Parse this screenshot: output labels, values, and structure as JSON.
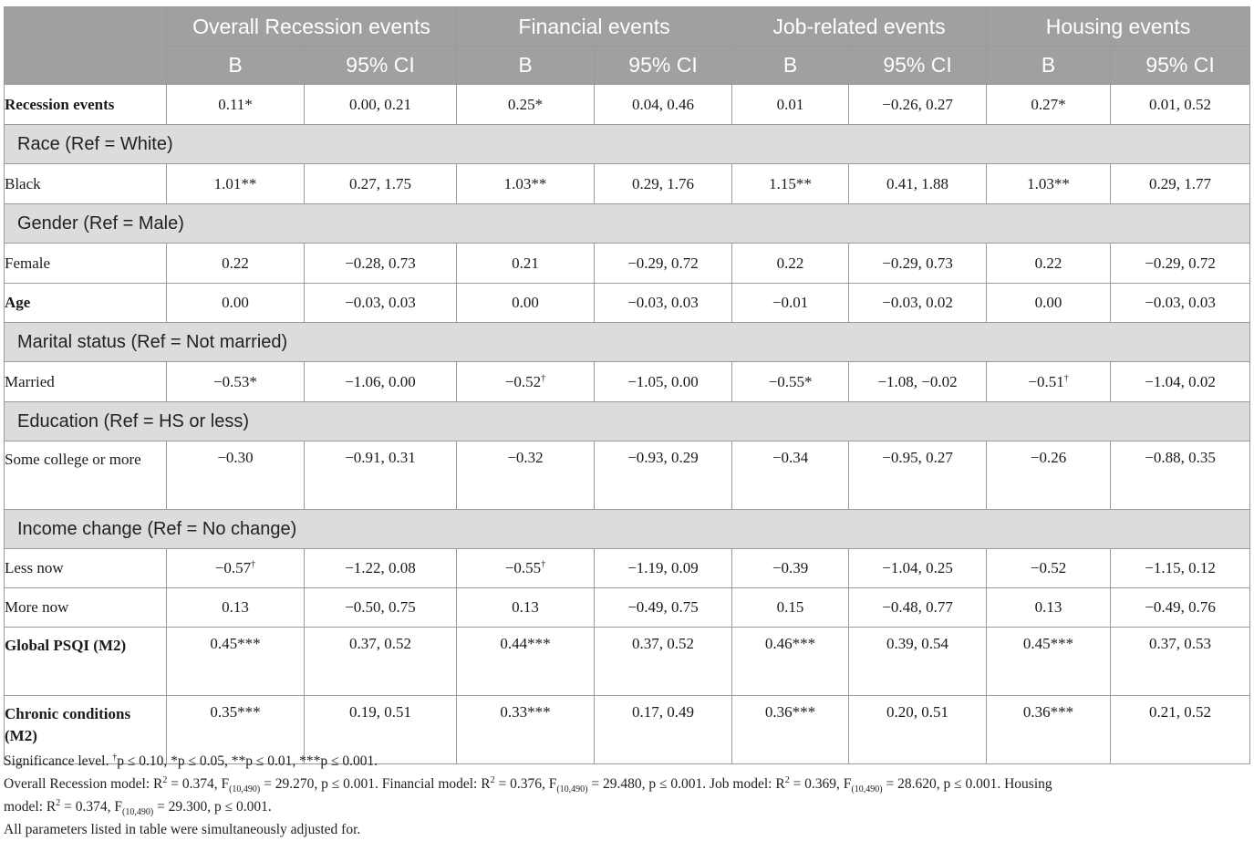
{
  "header": {
    "groups": [
      "Overall Recession events",
      "Financial events",
      "Job-related events",
      "Housing events"
    ],
    "sub": [
      "B",
      "95% CI",
      "B",
      "95% CI",
      "B",
      "95% CI",
      "B",
      "95% CI"
    ]
  },
  "rows": {
    "recession_events": {
      "label": "Recession events",
      "cells": [
        "0.11*",
        "0.00, 0.21",
        "0.25*",
        "0.04, 0.46",
        "0.01",
        "−0.26, 0.27",
        "0.27*",
        "0.01, 0.52"
      ]
    },
    "race_section": "Race (Ref = White)",
    "black": {
      "label": "Black",
      "cells": [
        "1.01**",
        "0.27, 1.75",
        "1.03**",
        "0.29, 1.76",
        "1.15**",
        "0.41, 1.88",
        "1.03**",
        "0.29, 1.77"
      ]
    },
    "gender_section": "Gender (Ref = Male)",
    "female": {
      "label": "Female",
      "cells": [
        "0.22",
        "−0.28, 0.73",
        "0.21",
        "−0.29, 0.72",
        "0.22",
        "−0.29, 0.73",
        "0.22",
        "−0.29, 0.72"
      ]
    },
    "age": {
      "label": "Age",
      "cells": [
        "0.00",
        "−0.03, 0.03",
        "0.00",
        "−0.03, 0.03",
        "−0.01",
        "−0.03, 0.02",
        "0.00",
        "−0.03, 0.03"
      ]
    },
    "marital_section": "Marital status (Ref = Not married)",
    "married": {
      "label": "Married",
      "cells": [
        "−0.53*",
        "−1.06, 0.00",
        "−0.52",
        "−1.05, 0.00",
        "−0.55*",
        "−1.08, −0.02",
        "−0.51",
        "−1.04, 0.02"
      ],
      "dagger": "†"
    },
    "education_section": "Education (Ref = HS or less)",
    "some_college": {
      "label": "Some college or more",
      "cells": [
        "−0.30",
        "−0.91, 0.31",
        "−0.32",
        "−0.93, 0.29",
        "−0.34",
        "−0.95, 0.27",
        "−0.26",
        "−0.88, 0.35"
      ]
    },
    "income_section": "Income change (Ref = No change)",
    "less_now": {
      "label": "Less now",
      "cells": [
        "−0.57",
        "−1.22, 0.08",
        "−0.55",
        "−1.19, 0.09",
        "−0.39",
        "−1.04, 0.25",
        "−0.52",
        "−1.15, 0.12"
      ]
    },
    "more_now": {
      "label": "More now",
      "cells": [
        "0.13",
        "−0.50, 0.75",
        "0.13",
        "−0.49, 0.75",
        "0.15",
        "−0.48, 0.77",
        "0.13",
        "−0.49, 0.76"
      ]
    },
    "global_psqi": {
      "label": "Global PSQI (M2)",
      "cells": [
        "0.45***",
        "0.37, 0.52",
        "0.44***",
        "0.37, 0.52",
        "0.46***",
        "0.39, 0.54",
        "0.45***",
        "0.37, 0.53"
      ]
    },
    "chronic": {
      "label": "Chronic conditions (M2)",
      "cells": [
        "0.35***",
        "0.19, 0.51",
        "0.33***",
        "0.17, 0.49",
        "0.36***",
        "0.20, 0.51",
        "0.36***",
        "0.21, 0.52"
      ]
    }
  },
  "footnotes": {
    "sig_lead": "Significance level. ",
    "sig_dagger": "†",
    "sig_rest": "p ≤ 0.10, *p ≤ 0.05, **p ≤ 0.01, ***p ≤ 0.001.",
    "m_overall_a": "Overall Recession model: R",
    "m_overall_b": " = 0.374, F",
    "m_overall_c": " = 29.270, p ≤ 0.001. Financial model: R",
    "m_fin_b": " = 0.376, F",
    "m_fin_c": " = 29.480, p ≤ 0.001. Job model: R",
    "m_job_b": " = 0.369, F",
    "m_job_c": " = 28.620, p ≤ 0.001. Housing",
    "m_house_a": "model: R",
    "m_house_b": " = 0.374, F",
    "m_house_c": " = 29.300, p ≤ 0.001.",
    "sq": "2",
    "df": "(10,490)",
    "adjusted": "All parameters listed in table were simultaneously adjusted for."
  }
}
